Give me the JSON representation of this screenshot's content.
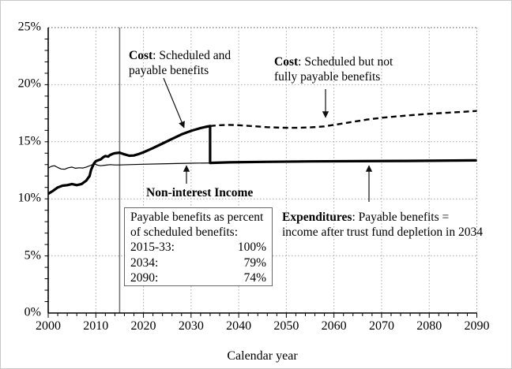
{
  "figure_name": "cost-and-income-rates-chart",
  "axes": {
    "xlabel": "Calendar year",
    "x_tick_labels": [
      "2000",
      "2010",
      "2020",
      "2030",
      "2040",
      "2050",
      "2060",
      "2070",
      "2080",
      "2090"
    ],
    "y_tick_labels": [
      "0%",
      "5%",
      "10%",
      "15%",
      "20%",
      "25%"
    ]
  },
  "annotations": {
    "cost_payable": {
      "bold": "Cost",
      "line1_rest": ": Scheduled and",
      "line2": "payable benefits"
    },
    "cost_scheduled": {
      "bold": "Cost",
      "line1_rest": ": Scheduled but not",
      "line2": "fully payable benefits"
    },
    "income": {
      "bold": "Non-interest Income"
    },
    "expenditures": {
      "bold": "Expenditures",
      "line1_rest": ": Payable benefits =",
      "line2": "income after trust fund depletion in 2034"
    }
  },
  "note_box": {
    "title_line1": "Payable benefits as percent",
    "title_line2": "of scheduled benefits:",
    "rows": [
      {
        "label": "2015-33:",
        "value": "100%"
      },
      {
        "label": "2034:",
        "value": "79%"
      },
      {
        "label": "2090:",
        "value": "74%"
      }
    ]
  },
  "chart_data": {
    "type": "line",
    "title": "",
    "xlabel": "Calendar year",
    "ylabel": "",
    "xlim": [
      2000,
      2090
    ],
    "ylim": [
      0,
      25
    ],
    "x_major_tick_step": 10,
    "x_minor_tick_step": 2,
    "y_major_tick_step": 5,
    "y_minor_tick_step": 1,
    "grid": "dotted at 5% horizontals and decade verticals",
    "legend_position": "none (direct annotations)",
    "divider_year": 2015,
    "trust_fund_depletion_year": 2034,
    "colors": {
      "line": "#000000",
      "grid": "#aaaaaa",
      "grid_top": "#555555",
      "divider": "#777777"
    },
    "series": [
      {
        "name": "Cost: scheduled and payable benefits; expenditures (payable) after depletion in 2034",
        "style": "thick-solid",
        "points": [
          [
            2000,
            10.45
          ],
          [
            2001,
            10.7
          ],
          [
            2002,
            11.0
          ],
          [
            2003,
            11.15
          ],
          [
            2004,
            11.2
          ],
          [
            2005,
            11.3
          ],
          [
            2006,
            11.2
          ],
          [
            2007,
            11.3
          ],
          [
            2008,
            11.6
          ],
          [
            2008.7,
            12.0
          ],
          [
            2009,
            12.55
          ],
          [
            2009.6,
            13.1
          ],
          [
            2010,
            13.3
          ],
          [
            2010.6,
            13.4
          ],
          [
            2011,
            13.45
          ],
          [
            2011.6,
            13.65
          ],
          [
            2012,
            13.75
          ],
          [
            2012.6,
            13.7
          ],
          [
            2013,
            13.85
          ],
          [
            2013.6,
            13.95
          ],
          [
            2014,
            14.0
          ],
          [
            2015,
            14.05
          ],
          [
            2016,
            13.9
          ],
          [
            2017,
            13.78
          ],
          [
            2018,
            13.8
          ],
          [
            2019,
            13.92
          ],
          [
            2020,
            14.08
          ],
          [
            2022,
            14.45
          ],
          [
            2024,
            14.85
          ],
          [
            2026,
            15.25
          ],
          [
            2028,
            15.65
          ],
          [
            2030,
            15.95
          ],
          [
            2032,
            16.2
          ],
          [
            2033,
            16.3
          ],
          [
            2034,
            16.38
          ],
          [
            2034,
            13.15
          ],
          [
            2038,
            13.2
          ],
          [
            2045,
            13.24
          ],
          [
            2055,
            13.28
          ],
          [
            2065,
            13.3
          ],
          [
            2075,
            13.32
          ],
          [
            2090,
            13.37
          ]
        ]
      },
      {
        "name": "Cost: scheduled but not fully payable benefits",
        "style": "dashed",
        "points": [
          [
            2034,
            16.38
          ],
          [
            2036,
            16.45
          ],
          [
            2038,
            16.48
          ],
          [
            2040,
            16.45
          ],
          [
            2043,
            16.37
          ],
          [
            2046,
            16.28
          ],
          [
            2049,
            16.23
          ],
          [
            2052,
            16.22
          ],
          [
            2055,
            16.26
          ],
          [
            2058,
            16.35
          ],
          [
            2061,
            16.55
          ],
          [
            2064,
            16.75
          ],
          [
            2067,
            16.95
          ],
          [
            2070,
            17.1
          ],
          [
            2073,
            17.22
          ],
          [
            2076,
            17.32
          ],
          [
            2080,
            17.45
          ],
          [
            2084,
            17.55
          ],
          [
            2087,
            17.62
          ],
          [
            2090,
            17.7
          ]
        ]
      },
      {
        "name": "Non-interest income",
        "style": "thin-solid",
        "points": [
          [
            2000,
            12.7
          ],
          [
            2000.7,
            12.85
          ],
          [
            2001.3,
            12.9
          ],
          [
            2002,
            12.75
          ],
          [
            2002.7,
            12.62
          ],
          [
            2003.5,
            12.6
          ],
          [
            2004.2,
            12.72
          ],
          [
            2005,
            12.78
          ],
          [
            2005.7,
            12.68
          ],
          [
            2006.5,
            12.72
          ],
          [
            2007.3,
            12.7
          ],
          [
            2008,
            12.78
          ],
          [
            2009,
            12.95
          ],
          [
            2009.7,
            13.05
          ],
          [
            2010.4,
            12.95
          ],
          [
            2011,
            12.9
          ],
          [
            2012,
            12.95
          ],
          [
            2013,
            13.0
          ],
          [
            2014,
            12.97
          ],
          [
            2015,
            12.97
          ],
          [
            2017,
            13.0
          ],
          [
            2020,
            13.03
          ],
          [
            2025,
            13.08
          ],
          [
            2030,
            13.12
          ],
          [
            2035,
            13.15
          ],
          [
            2040,
            13.18
          ],
          [
            2050,
            13.22
          ],
          [
            2060,
            13.26
          ],
          [
            2070,
            13.29
          ],
          [
            2080,
            13.33
          ],
          [
            2090,
            13.36
          ]
        ]
      }
    ]
  }
}
